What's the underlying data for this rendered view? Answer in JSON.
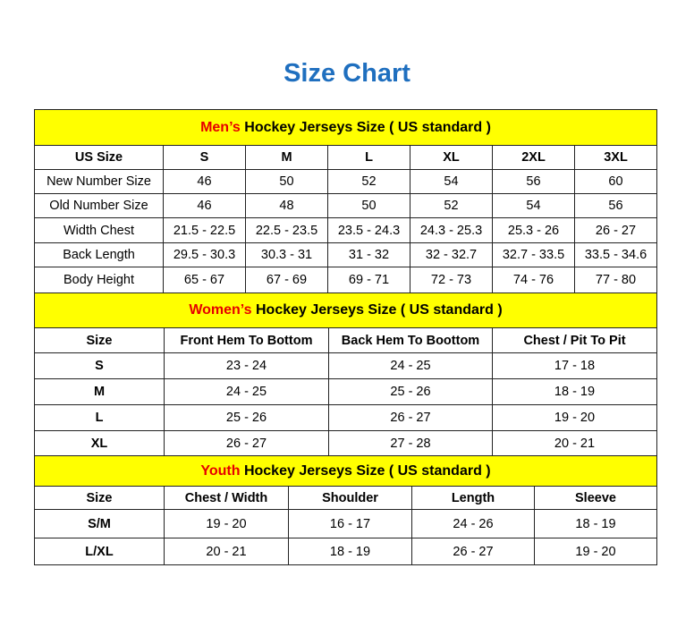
{
  "title": "Size Chart",
  "colors": {
    "title": "#1f6fbf",
    "header_bg": "#ffff00",
    "highlight": "#e60000"
  },
  "men": {
    "heading_highlight": "Men’s",
    "heading_rest": " Hockey Jerseys Size ( US standard )",
    "columns": [
      "US Size",
      "S",
      "M",
      "L",
      "XL",
      "2XL",
      "3XL"
    ],
    "rows": [
      [
        "New Number Size",
        "46",
        "50",
        "52",
        "54",
        "56",
        "60"
      ],
      [
        "Old Number Size",
        "46",
        "48",
        "50",
        "52",
        "54",
        "56"
      ],
      [
        "Width Chest",
        "21.5 - 22.5",
        "22.5 - 23.5",
        "23.5 - 24.3",
        "24.3 - 25.3",
        "25.3 - 26",
        "26 - 27"
      ],
      [
        "Back Length",
        "29.5 - 30.3",
        "30.3 - 31",
        "31 - 32",
        "32 - 32.7",
        "32.7 - 33.5",
        "33.5 - 34.6"
      ],
      [
        "Body Height",
        "65 - 67",
        "67 - 69",
        "69 - 71",
        "72 - 73",
        "74 - 76",
        "77 - 80"
      ]
    ]
  },
  "women": {
    "heading_highlight": "Women’s",
    "heading_rest": " Hockey Jerseys Size ( US standard )",
    "columns": [
      "Size",
      "Front Hem To Bottom",
      "Back Hem To Boottom",
      "Chest / Pit To Pit"
    ],
    "rows": [
      [
        "S",
        "23 - 24",
        "24 - 25",
        "17 - 18"
      ],
      [
        "M",
        "24 - 25",
        "25 - 26",
        "18 - 19"
      ],
      [
        "L",
        "25 - 26",
        "26 - 27",
        "19 - 20"
      ],
      [
        "XL",
        "26 - 27",
        "27 - 28",
        "20 - 21"
      ]
    ]
  },
  "youth": {
    "heading_highlight": "Youth",
    "heading_rest": " Hockey Jerseys Size ( US standard )",
    "columns": [
      "Size",
      "Chest / Width",
      "Shoulder",
      "Length",
      "Sleeve"
    ],
    "rows": [
      [
        "S/M",
        "19 - 20",
        "16 - 17",
        "24 - 26",
        "18 - 19"
      ],
      [
        "L/XL",
        "20 - 21",
        "18 - 19",
        "26 - 27",
        "19 - 20"
      ]
    ]
  }
}
